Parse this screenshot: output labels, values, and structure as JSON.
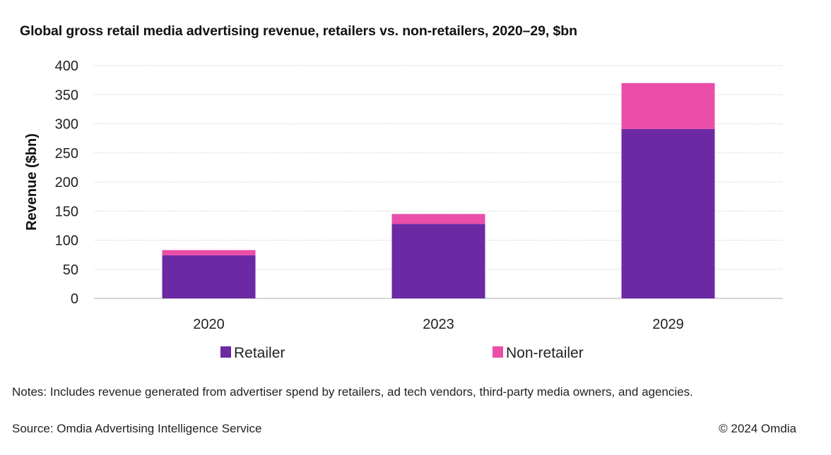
{
  "chart_data": {
    "type": "bar",
    "stacked": true,
    "title": "Global gross retail media advertising revenue, retailers vs. non-retailers, 2020–29, $bn",
    "xlabel": "",
    "ylabel": "Revenue ($bn)",
    "categories": [
      "2020",
      "2023",
      "2029"
    ],
    "series": [
      {
        "name": "Retailer",
        "color": "#6b2aa3",
        "values": [
          74,
          128,
          291
        ]
      },
      {
        "name": "Non-retailer",
        "color": "#ea4ea8",
        "values": [
          9,
          17,
          79
        ]
      }
    ],
    "ylim": [
      0,
      400
    ],
    "yticks": [
      0,
      50,
      100,
      150,
      200,
      250,
      300,
      350,
      400
    ],
    "grid": true,
    "legend_position": "bottom"
  },
  "notes": "Notes: Includes revenue generated from advertiser spend by retailers, ad tech vendors, third-party media owners, and agencies.",
  "source": "Source: Omdia Advertising Intelligence Service",
  "copyright": "© 2024 Omdia"
}
